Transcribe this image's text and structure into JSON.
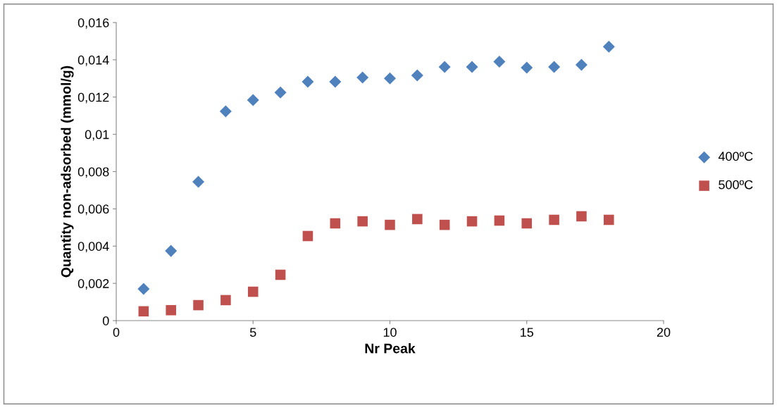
{
  "chart_data": {
    "type": "scatter",
    "xlabel": "Nr Peak",
    "ylabel": "Quantity non-adsorbed (mmol/g)",
    "x": [
      1,
      2,
      3,
      4,
      5,
      6,
      7,
      8,
      9,
      10,
      11,
      12,
      13,
      14,
      15,
      16,
      17,
      18
    ],
    "series": [
      {
        "name": "400ºC",
        "color": "#4f81bd",
        "marker": "diamond",
        "values": [
          0.0017,
          0.00374,
          0.00745,
          0.01123,
          0.01184,
          0.01225,
          0.01282,
          0.01282,
          0.01305,
          0.013,
          0.01316,
          0.01362,
          0.01362,
          0.0139,
          0.01358,
          0.01362,
          0.01373,
          0.0147
        ]
      },
      {
        "name": "500ºC",
        "color": "#c0504d",
        "marker": "square",
        "values": [
          0.0005,
          0.00056,
          0.00083,
          0.0011,
          0.00155,
          0.00246,
          0.00454,
          0.00522,
          0.00533,
          0.00514,
          0.00545,
          0.00514,
          0.00533,
          0.00537,
          0.00522,
          0.00541,
          0.0056,
          0.00541
        ]
      }
    ],
    "xlim": [
      0,
      20
    ],
    "xticks": [
      0,
      5,
      10,
      15,
      20
    ],
    "ylim": [
      0,
      0.016
    ],
    "yticks": [
      0,
      {
        "value": 0.002,
        "label": "0,002"
      },
      {
        "value": 0.004,
        "label": "0,004"
      },
      {
        "value": 0.006,
        "label": "0,006"
      },
      {
        "value": 0.008,
        "label": "0,008"
      },
      {
        "value": 0.01,
        "label": "0,01"
      },
      {
        "value": 0.012,
        "label": "0,012"
      },
      {
        "value": 0.014,
        "label": "0,014"
      },
      {
        "value": 0.016,
        "label": "0,016"
      }
    ],
    "grid": false,
    "legend": "right"
  }
}
